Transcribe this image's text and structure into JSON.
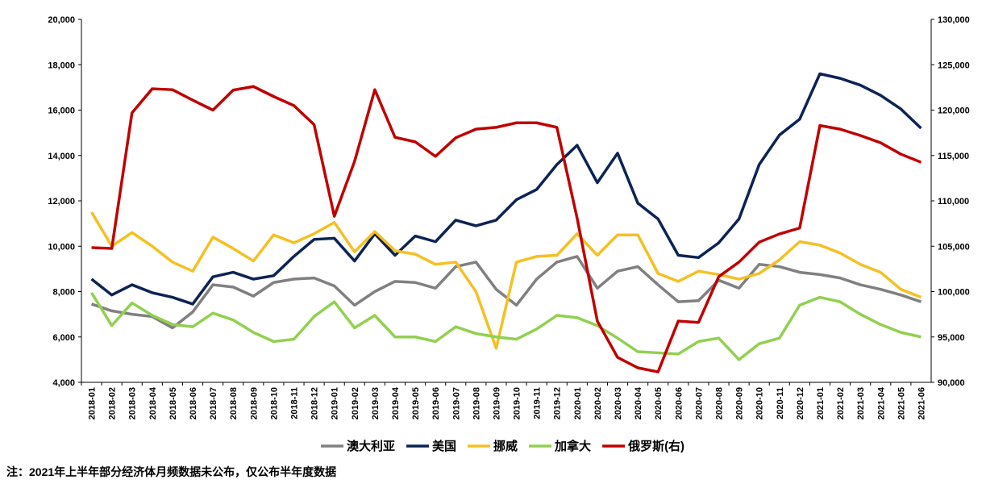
{
  "chart_data": {
    "type": "line",
    "categories": [
      "2018-01",
      "2018-02",
      "2018-03",
      "2018-04",
      "2018-05",
      "2018-06",
      "2018-07",
      "2018-08",
      "2018-09",
      "2018-10",
      "2018-11",
      "2018-12",
      "2019-01",
      "2019-02",
      "2019-03",
      "2019-04",
      "2019-05",
      "2019-06",
      "2019-07",
      "2019-08",
      "2019-09",
      "2019-10",
      "2019-11",
      "2019-12",
      "2020-01",
      "2020-02",
      "2020-03",
      "2020-04",
      "2020-05",
      "2020-06",
      "2020-07",
      "2020-08",
      "2020-09",
      "2020-10",
      "2020-11",
      "2020-12",
      "2021-01",
      "2021-02",
      "2021-03",
      "2021-04",
      "2021-05",
      "2021-06"
    ],
    "series": [
      {
        "name": "澳大利亚",
        "color": "#808080",
        "values": [
          7450,
          7150,
          7000,
          6900,
          6400,
          7100,
          8300,
          8200,
          7800,
          8400,
          8550,
          8600,
          8250,
          7400,
          8000,
          8450,
          8400,
          8150,
          9100,
          9300,
          8100,
          7400,
          8550,
          9300,
          9550,
          8150,
          8900,
          9100,
          8300,
          7550,
          7600,
          8500,
          8150,
          9200,
          9100,
          8850,
          8750,
          8600,
          8300,
          8100,
          7850,
          7550
        ]
      },
      {
        "name": "美国",
        "color": "#0d2355",
        "values": [
          8550,
          7850,
          8300,
          7950,
          7750,
          7450,
          8650,
          8850,
          8550,
          8700,
          9550,
          10300,
          10350,
          9350,
          10550,
          9600,
          10450,
          10200,
          11150,
          10900,
          11150,
          12050,
          12500,
          13600,
          14450,
          12800,
          14100,
          11900,
          11200,
          9600,
          9500,
          10150,
          11200,
          13600,
          14900,
          15600,
          17600,
          17400,
          17100,
          16650,
          16050,
          15200
        ]
      },
      {
        "name": "挪威",
        "color": "#f5c023",
        "values": [
          11500,
          10000,
          10600,
          10000,
          9300,
          8900,
          10400,
          9900,
          9350,
          10500,
          10150,
          10550,
          11050,
          9750,
          10650,
          9800,
          9650,
          9200,
          9300,
          8000,
          5500,
          9300,
          9550,
          9600,
          10550,
          9600,
          10500,
          10500,
          8800,
          8450,
          8900,
          8750,
          8550,
          8800,
          9400,
          10200,
          10050,
          9700,
          9200,
          8850,
          8100,
          7750
        ]
      },
      {
        "name": "加拿大",
        "color": "#92d050",
        "values": [
          7950,
          6500,
          7500,
          6950,
          6550,
          6450,
          7050,
          6750,
          6200,
          5800,
          5900,
          6900,
          7550,
          6400,
          6950,
          6000,
          6000,
          5800,
          6450,
          6150,
          6000,
          5900,
          6350,
          6950,
          6850,
          6500,
          5950,
          5350,
          5300,
          5250,
          5800,
          5950,
          5000,
          5700,
          5950,
          7400,
          7750,
          7550,
          7000,
          6550,
          6200,
          6000
        ]
      },
      {
        "name": "俄罗斯(右)",
        "color": "#c00000",
        "axis": "y2",
        "values": [
          104850,
          104750,
          119700,
          122350,
          122250,
          121100,
          120000,
          122200,
          122600,
          121500,
          120500,
          118400,
          108300,
          114350,
          122250,
          117000,
          116500,
          114900,
          116950,
          117900,
          118100,
          118600,
          118600,
          118100,
          108100,
          96750,
          92750,
          91600,
          91150,
          96750,
          96600,
          101650,
          103250,
          105450,
          106350,
          107000,
          118300,
          117900,
          117200,
          116400,
          115150,
          114250
        ]
      }
    ],
    "ylim": [
      4000,
      20000
    ],
    "yticks": [
      {
        "value": 4000,
        "label": "4,000"
      },
      {
        "value": 6000,
        "label": "6,000"
      },
      {
        "value": 8000,
        "label": "8,000"
      },
      {
        "value": 10000,
        "label": "10,000"
      },
      {
        "value": 12000,
        "label": "12,000"
      },
      {
        "value": 14000,
        "label": "14,000"
      },
      {
        "value": 16000,
        "label": "16,000"
      },
      {
        "value": 18000,
        "label": "18,000"
      },
      {
        "value": 20000,
        "label": "20,000"
      }
    ],
    "y2lim": [
      90000,
      130000
    ],
    "y2ticks": [
      {
        "value": 90000,
        "label": "90,000"
      },
      {
        "value": 95000,
        "label": "95,000"
      },
      {
        "value": 100000,
        "label": "100,000"
      },
      {
        "value": 105000,
        "label": "105,000"
      },
      {
        "value": 110000,
        "label": "110,000"
      },
      {
        "value": 115000,
        "label": "115,000"
      },
      {
        "value": 120000,
        "label": "120,000"
      },
      {
        "value": 125000,
        "label": "125,000"
      },
      {
        "value": 130000,
        "label": "130,000"
      }
    ],
    "legend": "bottom",
    "note": "注：2021年上半年部分经济体月频数据未公布，仅公布半年度数据"
  }
}
